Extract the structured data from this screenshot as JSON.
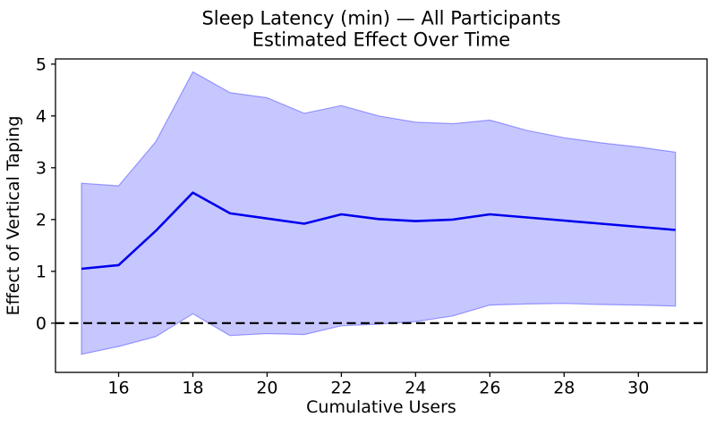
{
  "title": {
    "line1": "Sleep Latency (min) — All Participants",
    "line2": "Estimated Effect Over Time"
  },
  "chart_data": {
    "type": "line",
    "xlabel": "Cumulative Users",
    "ylabel": "Effect of Vertical Taping",
    "x": [
      15,
      16,
      17,
      18,
      19,
      20,
      21,
      22,
      23,
      24,
      25,
      26,
      27,
      28,
      29,
      30,
      31
    ],
    "series": [
      {
        "name": "estimated-effect",
        "values": [
          1.05,
          1.12,
          1.78,
          2.52,
          2.12,
          2.02,
          1.92,
          2.1,
          2.01,
          1.97,
          2.0,
          2.1,
          2.04,
          1.98,
          1.92,
          1.86,
          1.8
        ],
        "color": "#0000ee",
        "linewidth": 2.6
      }
    ],
    "band": {
      "name": "confidence-interval",
      "upper": [
        2.7,
        2.65,
        3.5,
        4.85,
        4.45,
        4.35,
        4.05,
        4.2,
        4.0,
        3.88,
        3.85,
        3.92,
        3.72,
        3.58,
        3.48,
        3.4,
        3.3
      ],
      "lower": [
        -0.6,
        -0.45,
        -0.26,
        0.18,
        -0.24,
        -0.2,
        -0.22,
        -0.05,
        -0.02,
        0.03,
        0.14,
        0.35,
        0.37,
        0.38,
        0.36,
        0.35,
        0.33
      ],
      "fill": "rgba(0,0,255,0.22)",
      "edge": "rgba(0,0,255,0.35)"
    },
    "reference_line": {
      "y": 0,
      "style": "dashed",
      "color": "#000000",
      "linewidth": 2.2
    },
    "xticks": [
      16,
      18,
      20,
      22,
      24,
      26,
      28,
      30
    ],
    "yticks": [
      0,
      1,
      2,
      3,
      4,
      5
    ],
    "xlim": [
      14.3,
      31.85
    ],
    "ylim": [
      -0.95,
      5.1
    ],
    "grid": false,
    "legend": "none",
    "spine_color": "#000000"
  }
}
